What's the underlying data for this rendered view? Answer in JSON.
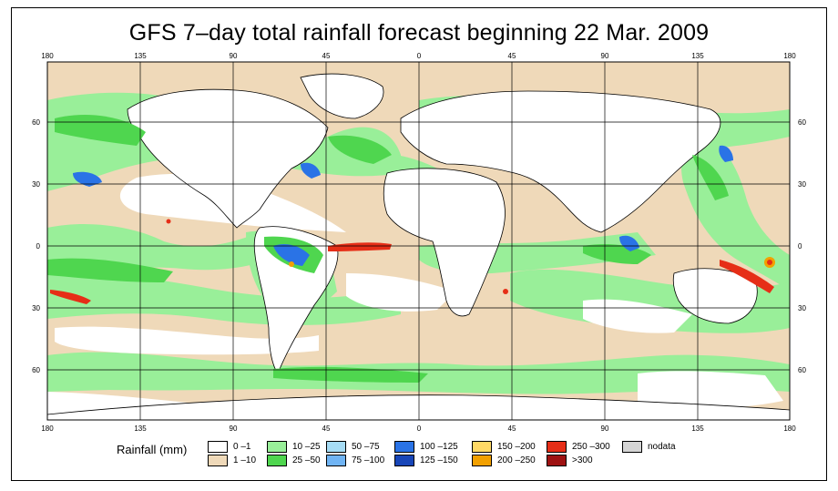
{
  "title": "GFS 7–day total rainfall forecast beginning 22 Mar. 2009",
  "longitude_ticks": [
    "180",
    "135",
    "90",
    "45",
    "0",
    "45",
    "90",
    "135",
    "180"
  ],
  "latitude_ticks": [
    "60",
    "30",
    "0",
    "30",
    "60"
  ],
  "legend": {
    "title": "Rainfall (mm)",
    "items": [
      {
        "label": "0 –1",
        "color": "#ffffff"
      },
      {
        "label": "1 –10",
        "color": "#efd9b9"
      },
      {
        "label": "10 –25",
        "color": "#99ef99"
      },
      {
        "label": "25 –50",
        "color": "#4fd64f"
      },
      {
        "label": "50 –75",
        "color": "#a6dcf5"
      },
      {
        "label": "75 –100",
        "color": "#70b4f4"
      },
      {
        "label": "100 –125",
        "color": "#2a73e6"
      },
      {
        "label": "125 –150",
        "color": "#1846b8"
      },
      {
        "label": "150 –200",
        "color": "#ffd966"
      },
      {
        "label": "200 –250",
        "color": "#f2a000"
      },
      {
        "label": "250 –300",
        "color": "#e62e17"
      },
      {
        "label": ">300",
        "color": "#9e1212"
      },
      {
        "label": "nodata",
        "color": "#d4d4d4"
      }
    ]
  },
  "colors": {
    "ocean_base": "#efd9b9",
    "land": "#ffffff",
    "light_rain": "#99ef99",
    "moderate_rain": "#4fd64f",
    "heavy_rain": "#2a73e6",
    "extreme_rain": "#e62e17"
  }
}
